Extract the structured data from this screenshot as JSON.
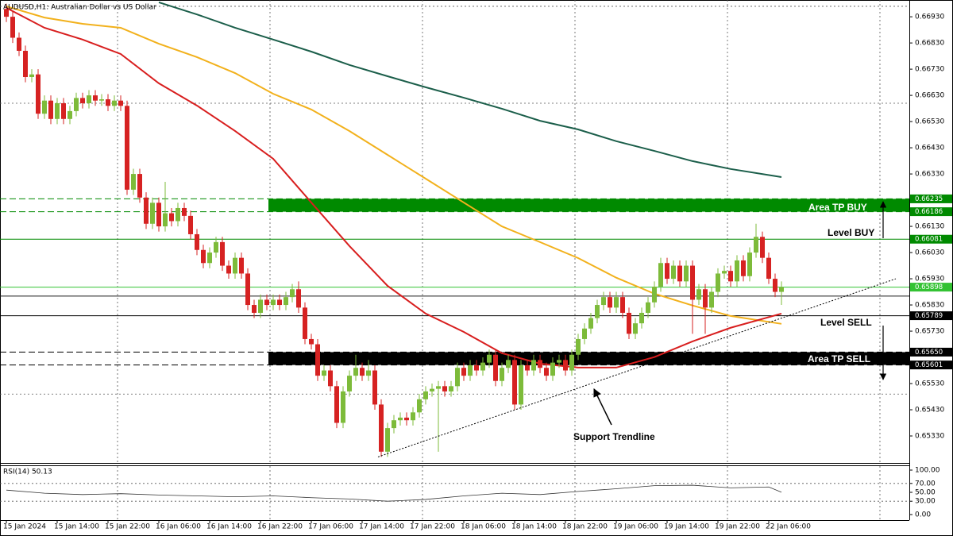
{
  "chart_data": [
    {
      "type": "candlestick",
      "title": "AUDUSD,H1: Australian Dollar vs US Dollar",
      "categories": [
        "15 Jan 2024",
        null,
        null,
        null,
        null,
        null,
        null,
        null,
        "15 Jan 14:00",
        null,
        null,
        null,
        null,
        null,
        null,
        null,
        "15 Jan 22:00",
        null,
        null,
        null,
        null,
        null,
        null,
        null,
        "16 Jan 06:00",
        null,
        null,
        null,
        null,
        null,
        null,
        null,
        "16 Jan 14:00",
        null,
        null,
        null,
        null,
        null,
        null,
        null,
        "16 Jan 22:00",
        null,
        null,
        null,
        null,
        null,
        null,
        null,
        "17 Jan 06:00",
        null,
        null,
        null,
        null,
        null,
        null,
        null,
        "17 Jan 14:00",
        null,
        null,
        null,
        null,
        null,
        null,
        null,
        "17 Jan 22:00",
        null,
        null,
        null,
        null,
        null,
        null,
        null,
        "18 Jan 06:00",
        null,
        null,
        null,
        null,
        null,
        null,
        null,
        "18 Jan 14:00",
        null,
        null,
        null,
        null,
        null,
        null,
        null,
        "18 Jan 22:00",
        null,
        null,
        null,
        null,
        null,
        null,
        null,
        "19 Jan 06:00",
        null,
        null,
        null,
        null,
        null,
        null,
        null,
        "19 Jan 14:00",
        null,
        null,
        null,
        null,
        null,
        null,
        null,
        "19 Jan 22:00",
        null,
        null,
        null,
        null,
        null,
        null,
        null,
        "22 Jan 06:00",
        null,
        null
      ],
      "open": [
        0.6696,
        0.6693,
        0.6685,
        0.668,
        0.667,
        0.6671,
        0.6656,
        0.6661,
        0.6654,
        0.666,
        0.6654,
        0.6657,
        0.6662,
        0.666,
        0.6663,
        0.6661,
        0.66615,
        0.6659,
        0.6661,
        0.6659,
        0.6627,
        0.6633,
        0.6624,
        0.6614,
        0.6622,
        0.6613,
        0.6618,
        0.6615,
        0.662,
        0.6617,
        0.661,
        0.6604,
        0.6599,
        0.6603,
        0.6607,
        0.6598,
        0.6595,
        0.6601,
        0.6595,
        0.6583,
        0.658,
        0.6585,
        0.6583,
        0.6585,
        0.6583,
        0.6586,
        0.6589,
        0.6582,
        0.657,
        0.6568,
        0.6556,
        0.6558,
        0.6552,
        0.6538,
        0.655,
        0.6556,
        0.6559,
        0.6556,
        0.6558,
        0.6545,
        0.6527,
        0.6536,
        0.6539,
        0.654,
        0.6539,
        0.6542,
        0.6547,
        0.655,
        0.6551,
        0.6552,
        0.655,
        0.6552,
        0.6559,
        0.6556,
        0.656,
        0.6558,
        0.6561,
        0.6564,
        0.6554,
        0.6559,
        0.6562,
        0.6545,
        0.656,
        0.6558,
        0.6562,
        0.6559,
        0.6556,
        0.6561,
        0.6562,
        0.6558,
        0.6564,
        0.657,
        0.6574,
        0.6578,
        0.6583,
        0.6586,
        0.6582,
        0.6586,
        0.658,
        0.6572,
        0.6576,
        0.658,
        0.6584,
        0.659,
        0.6599,
        0.6593,
        0.6598,
        0.6592,
        0.6598,
        0.6585,
        0.6589,
        0.6582,
        0.6588,
        0.6595,
        0.6596,
        0.6592,
        0.66,
        0.6594,
        0.6603,
        0.6609,
        0.6601,
        0.6593,
        0.6588
      ],
      "high": [
        0.6698,
        0.6695,
        0.6687,
        0.6682,
        0.6673,
        0.6673,
        0.6663,
        0.6663,
        0.6662,
        0.6662,
        0.6659,
        0.6664,
        0.6664,
        0.6665,
        0.6665,
        0.66635,
        0.66635,
        0.6663,
        0.6663,
        0.6661,
        0.6635,
        0.6635,
        0.6626,
        0.6624,
        0.6624,
        0.663,
        0.662,
        0.6622,
        0.6622,
        0.6619,
        0.6612,
        0.6606,
        0.6605,
        0.6609,
        0.6609,
        0.66,
        0.6603,
        0.6603,
        0.6597,
        0.6585,
        0.6587,
        0.6587,
        0.6587,
        0.6587,
        0.6588,
        0.6591,
        0.6592,
        0.6584,
        0.6572,
        0.657,
        0.656,
        0.656,
        0.6554,
        0.6552,
        0.6558,
        0.6564,
        0.6561,
        0.6562,
        0.656,
        0.6547,
        0.6538,
        0.6541,
        0.6542,
        0.6542,
        0.6544,
        0.6549,
        0.6552,
        0.6553,
        0.6554,
        0.6554,
        0.6554,
        0.6561,
        0.6561,
        0.6562,
        0.6562,
        0.6563,
        0.6566,
        0.6566,
        0.6561,
        0.6564,
        0.6564,
        0.6562,
        0.6562,
        0.6564,
        0.6564,
        0.6561,
        0.6563,
        0.6564,
        0.6564,
        0.6566,
        0.6572,
        0.6576,
        0.658,
        0.6585,
        0.6588,
        0.6588,
        0.6588,
        0.6588,
        0.6582,
        0.6578,
        0.6582,
        0.6586,
        0.6592,
        0.6601,
        0.6601,
        0.66,
        0.66,
        0.66,
        0.66,
        0.6591,
        0.6591,
        0.659,
        0.6597,
        0.6598,
        0.6598,
        0.6602,
        0.6602,
        0.6605,
        0.6614,
        0.6611,
        0.6603,
        0.6595,
        0.6592
      ],
      "low": [
        0.6691,
        0.6683,
        0.6678,
        0.6668,
        0.6668,
        0.6654,
        0.6654,
        0.6652,
        0.6652,
        0.6652,
        0.6652,
        0.6655,
        0.6658,
        0.6658,
        0.6659,
        0.6659,
        0.6657,
        0.6657,
        0.6657,
        0.6625,
        0.6625,
        0.6622,
        0.6612,
        0.6612,
        0.6611,
        0.6611,
        0.6613,
        0.6613,
        0.6615,
        0.6608,
        0.6602,
        0.6597,
        0.6597,
        0.6601,
        0.6596,
        0.6593,
        0.6593,
        0.6593,
        0.6581,
        0.6578,
        0.6578,
        0.6581,
        0.6581,
        0.6581,
        0.6581,
        0.6584,
        0.658,
        0.6568,
        0.6566,
        0.6554,
        0.6554,
        0.655,
        0.6536,
        0.6536,
        0.6548,
        0.6554,
        0.6554,
        0.6554,
        0.6543,
        0.6525,
        0.6525,
        0.6534,
        0.6537,
        0.6537,
        0.6537,
        0.654,
        0.6545,
        0.6548,
        0.6527,
        0.6548,
        0.6548,
        0.655,
        0.6554,
        0.6554,
        0.6556,
        0.6556,
        0.6559,
        0.6552,
        0.6552,
        0.6557,
        0.6543,
        0.6543,
        0.6556,
        0.6556,
        0.6557,
        0.6554,
        0.6554,
        0.6559,
        0.6556,
        0.6556,
        0.6562,
        0.6568,
        0.6572,
        0.6576,
        0.6581,
        0.658,
        0.658,
        0.6578,
        0.657,
        0.657,
        0.6574,
        0.6578,
        0.6582,
        0.6588,
        0.6591,
        0.6591,
        0.659,
        0.659,
        0.6572,
        0.6583,
        0.6572,
        0.658,
        0.6586,
        0.6593,
        0.659,
        0.659,
        0.6592,
        0.6592,
        0.6601,
        0.6599,
        0.6591,
        0.6586,
        0.6583
      ],
      "close": [
        0.6693,
        0.6685,
        0.668,
        0.667,
        0.6671,
        0.6656,
        0.6661,
        0.6654,
        0.666,
        0.6654,
        0.6657,
        0.6662,
        0.666,
        0.6663,
        0.6661,
        0.66615,
        0.6659,
        0.6661,
        0.6659,
        0.6627,
        0.6633,
        0.6624,
        0.6614,
        0.6622,
        0.6613,
        0.6618,
        0.6615,
        0.662,
        0.6617,
        0.661,
        0.6604,
        0.6599,
        0.6603,
        0.6607,
        0.6598,
        0.6595,
        0.6601,
        0.6595,
        0.6583,
        0.658,
        0.6585,
        0.6583,
        0.6585,
        0.6583,
        0.6586,
        0.6589,
        0.6582,
        0.657,
        0.6568,
        0.6556,
        0.6558,
        0.6552,
        0.6538,
        0.655,
        0.6556,
        0.6559,
        0.6556,
        0.6558,
        0.6545,
        0.6527,
        0.6536,
        0.6539,
        0.654,
        0.6539,
        0.6542,
        0.6547,
        0.655,
        0.6551,
        0.6552,
        0.655,
        0.6552,
        0.6559,
        0.6556,
        0.656,
        0.6558,
        0.6561,
        0.6564,
        0.6554,
        0.6559,
        0.6562,
        0.6545,
        0.656,
        0.6558,
        0.6562,
        0.6559,
        0.6556,
        0.6561,
        0.6562,
        0.6558,
        0.6564,
        0.657,
        0.6574,
        0.6578,
        0.6583,
        0.6586,
        0.6582,
        0.6586,
        0.658,
        0.6572,
        0.6576,
        0.658,
        0.6584,
        0.659,
        0.6599,
        0.6593,
        0.6598,
        0.6592,
        0.6598,
        0.6585,
        0.6589,
        0.6582,
        0.6588,
        0.6595,
        0.6596,
        0.6592,
        0.66,
        0.6594,
        0.6603,
        0.6609,
        0.6601,
        0.6593,
        0.6588,
        0.65898
      ],
      "up_color": "#7dbb3a",
      "down_color": "#d62222",
      "ylim": [
        0.65227,
        0.66994
      ],
      "yticks": [
        {
          "value": 0.6693,
          "label": "0.66930"
        },
        {
          "value": 0.6683,
          "label": "0.66830"
        },
        {
          "value": 0.6673,
          "label": "0.66730"
        },
        {
          "value": 0.6663,
          "label": "0.66630"
        },
        {
          "value": 0.6653,
          "label": "0.66530"
        },
        {
          "value": 0.6643,
          "label": "0.66430"
        },
        {
          "value": 0.6633,
          "label": "0.66330"
        },
        {
          "value": 0.6613,
          "label": "0.66130"
        },
        {
          "value": 0.6603,
          "label": "0.66030"
        },
        {
          "value": 0.6593,
          "label": "0.65930"
        },
        {
          "value": 0.6583,
          "label": "0.65830"
        },
        {
          "value": 0.6573,
          "label": "0.65730"
        },
        {
          "value": 0.6553,
          "label": "0.65530"
        },
        {
          "value": 0.6543,
          "label": "0.65430"
        },
        {
          "value": 0.6533,
          "label": "0.65330"
        }
      ],
      "xgrid": [
        17.5,
        41.5,
        65.5,
        89.5,
        113.5,
        137.5
      ],
      "ygrid": [
        0.6697,
        0.666,
        0.6549
      ],
      "lines": [
        {
          "color": "#1b5e4a",
          "x": [
            24,
            30,
            36,
            42,
            48,
            54,
            60,
            66,
            72,
            78,
            84,
            90,
            96,
            102,
            108,
            114,
            122
          ],
          "values": [
            0.66985,
            0.66939,
            0.66888,
            0.66843,
            0.66797,
            0.66746,
            0.66703,
            0.66661,
            0.66621,
            0.66579,
            0.66533,
            0.665,
            0.66455,
            0.66418,
            0.66379,
            0.66349,
            0.66318
          ]
        },
        {
          "color": "#f2b11c",
          "x": [
            0,
            6,
            12,
            18,
            24,
            30,
            36,
            42,
            48,
            54,
            60,
            66,
            72,
            78,
            84,
            90,
            96,
            102,
            108,
            114,
            122
          ],
          "values": [
            0.6697,
            0.66927,
            0.66903,
            0.66888,
            0.66827,
            0.66776,
            0.66715,
            0.66636,
            0.66576,
            0.66494,
            0.66403,
            0.66312,
            0.66221,
            0.6613,
            0.6607,
            0.66009,
            0.65934,
            0.65873,
            0.65828,
            0.65788,
            0.65758
          ]
        },
        {
          "color": "#d81e1e",
          "x": [
            0,
            6,
            12,
            18,
            24,
            30,
            36,
            42,
            48,
            54,
            60,
            66,
            72,
            78,
            84,
            90,
            96,
            102,
            108,
            114,
            122
          ],
          "values": [
            0.66964,
            0.66888,
            0.66843,
            0.66788,
            0.66676,
            0.66591,
            0.66494,
            0.66388,
            0.66221,
            0.66055,
            0.65903,
            0.65797,
            0.65727,
            0.65646,
            0.65606,
            0.65591,
            0.65591,
            0.65631,
            0.65691,
            0.65743,
            0.65797
          ]
        }
      ],
      "zones": [
        {
          "x0": 41.25,
          "top": 0.66235,
          "bottom": 0.66186,
          "color": "#008a00"
        },
        {
          "x0": 41.25,
          "top": 0.6565,
          "bottom": 0.65601,
          "color": "#000000"
        }
      ],
      "levels": [
        {
          "value": 0.66235,
          "color": "#008a00",
          "dash": true
        },
        {
          "value": 0.66186,
          "color": "#008a00",
          "dash": true
        },
        {
          "value": 0.66081,
          "color": "#008a00",
          "dash": false
        },
        {
          "value": 0.65898,
          "color": "#33c233",
          "dash": false
        },
        {
          "value": 0.65864,
          "color": "#1a1a1a",
          "dash": false,
          "tag": false
        },
        {
          "value": 0.65789,
          "color": "#000000",
          "dash": false
        },
        {
          "value": 0.6565,
          "label": "0.65650",
          "color": "#000000",
          "dash": true
        },
        {
          "value": 0.65601,
          "color": "#000000",
          "dash": true
        }
      ],
      "trendline": {
        "x": [
          58.5,
          140
        ],
        "values": [
          0.6525,
          0.6593
        ]
      },
      "annotations": [
        "Area TP BUY",
        "Level BUY",
        "Level SELL",
        "Area TP SELL",
        "Support Trendline"
      ]
    },
    {
      "type": "line",
      "title": "RSI(14) 50.13",
      "x": [
        0,
        6,
        12,
        18,
        24,
        30,
        36,
        42,
        48,
        54,
        60,
        66,
        72,
        78,
        84,
        90,
        96,
        102,
        108,
        114,
        120,
        122
      ],
      "values": [
        55,
        48,
        45,
        47,
        44,
        42,
        40,
        42,
        38,
        35,
        30,
        34,
        42,
        48,
        45,
        52,
        58,
        65,
        66,
        60,
        62,
        50.13
      ],
      "color": "#333333",
      "ylim": [
        0,
        100
      ],
      "yticks": [
        {
          "value": 100,
          "label": "100.00"
        },
        {
          "value": 70,
          "label": "70.00"
        },
        {
          "value": 50,
          "label": "50.00"
        },
        {
          "value": 30,
          "label": "30.00"
        },
        {
          "value": 0,
          "label": "0.00"
        }
      ],
      "levels": [
        70,
        30
      ]
    }
  ]
}
